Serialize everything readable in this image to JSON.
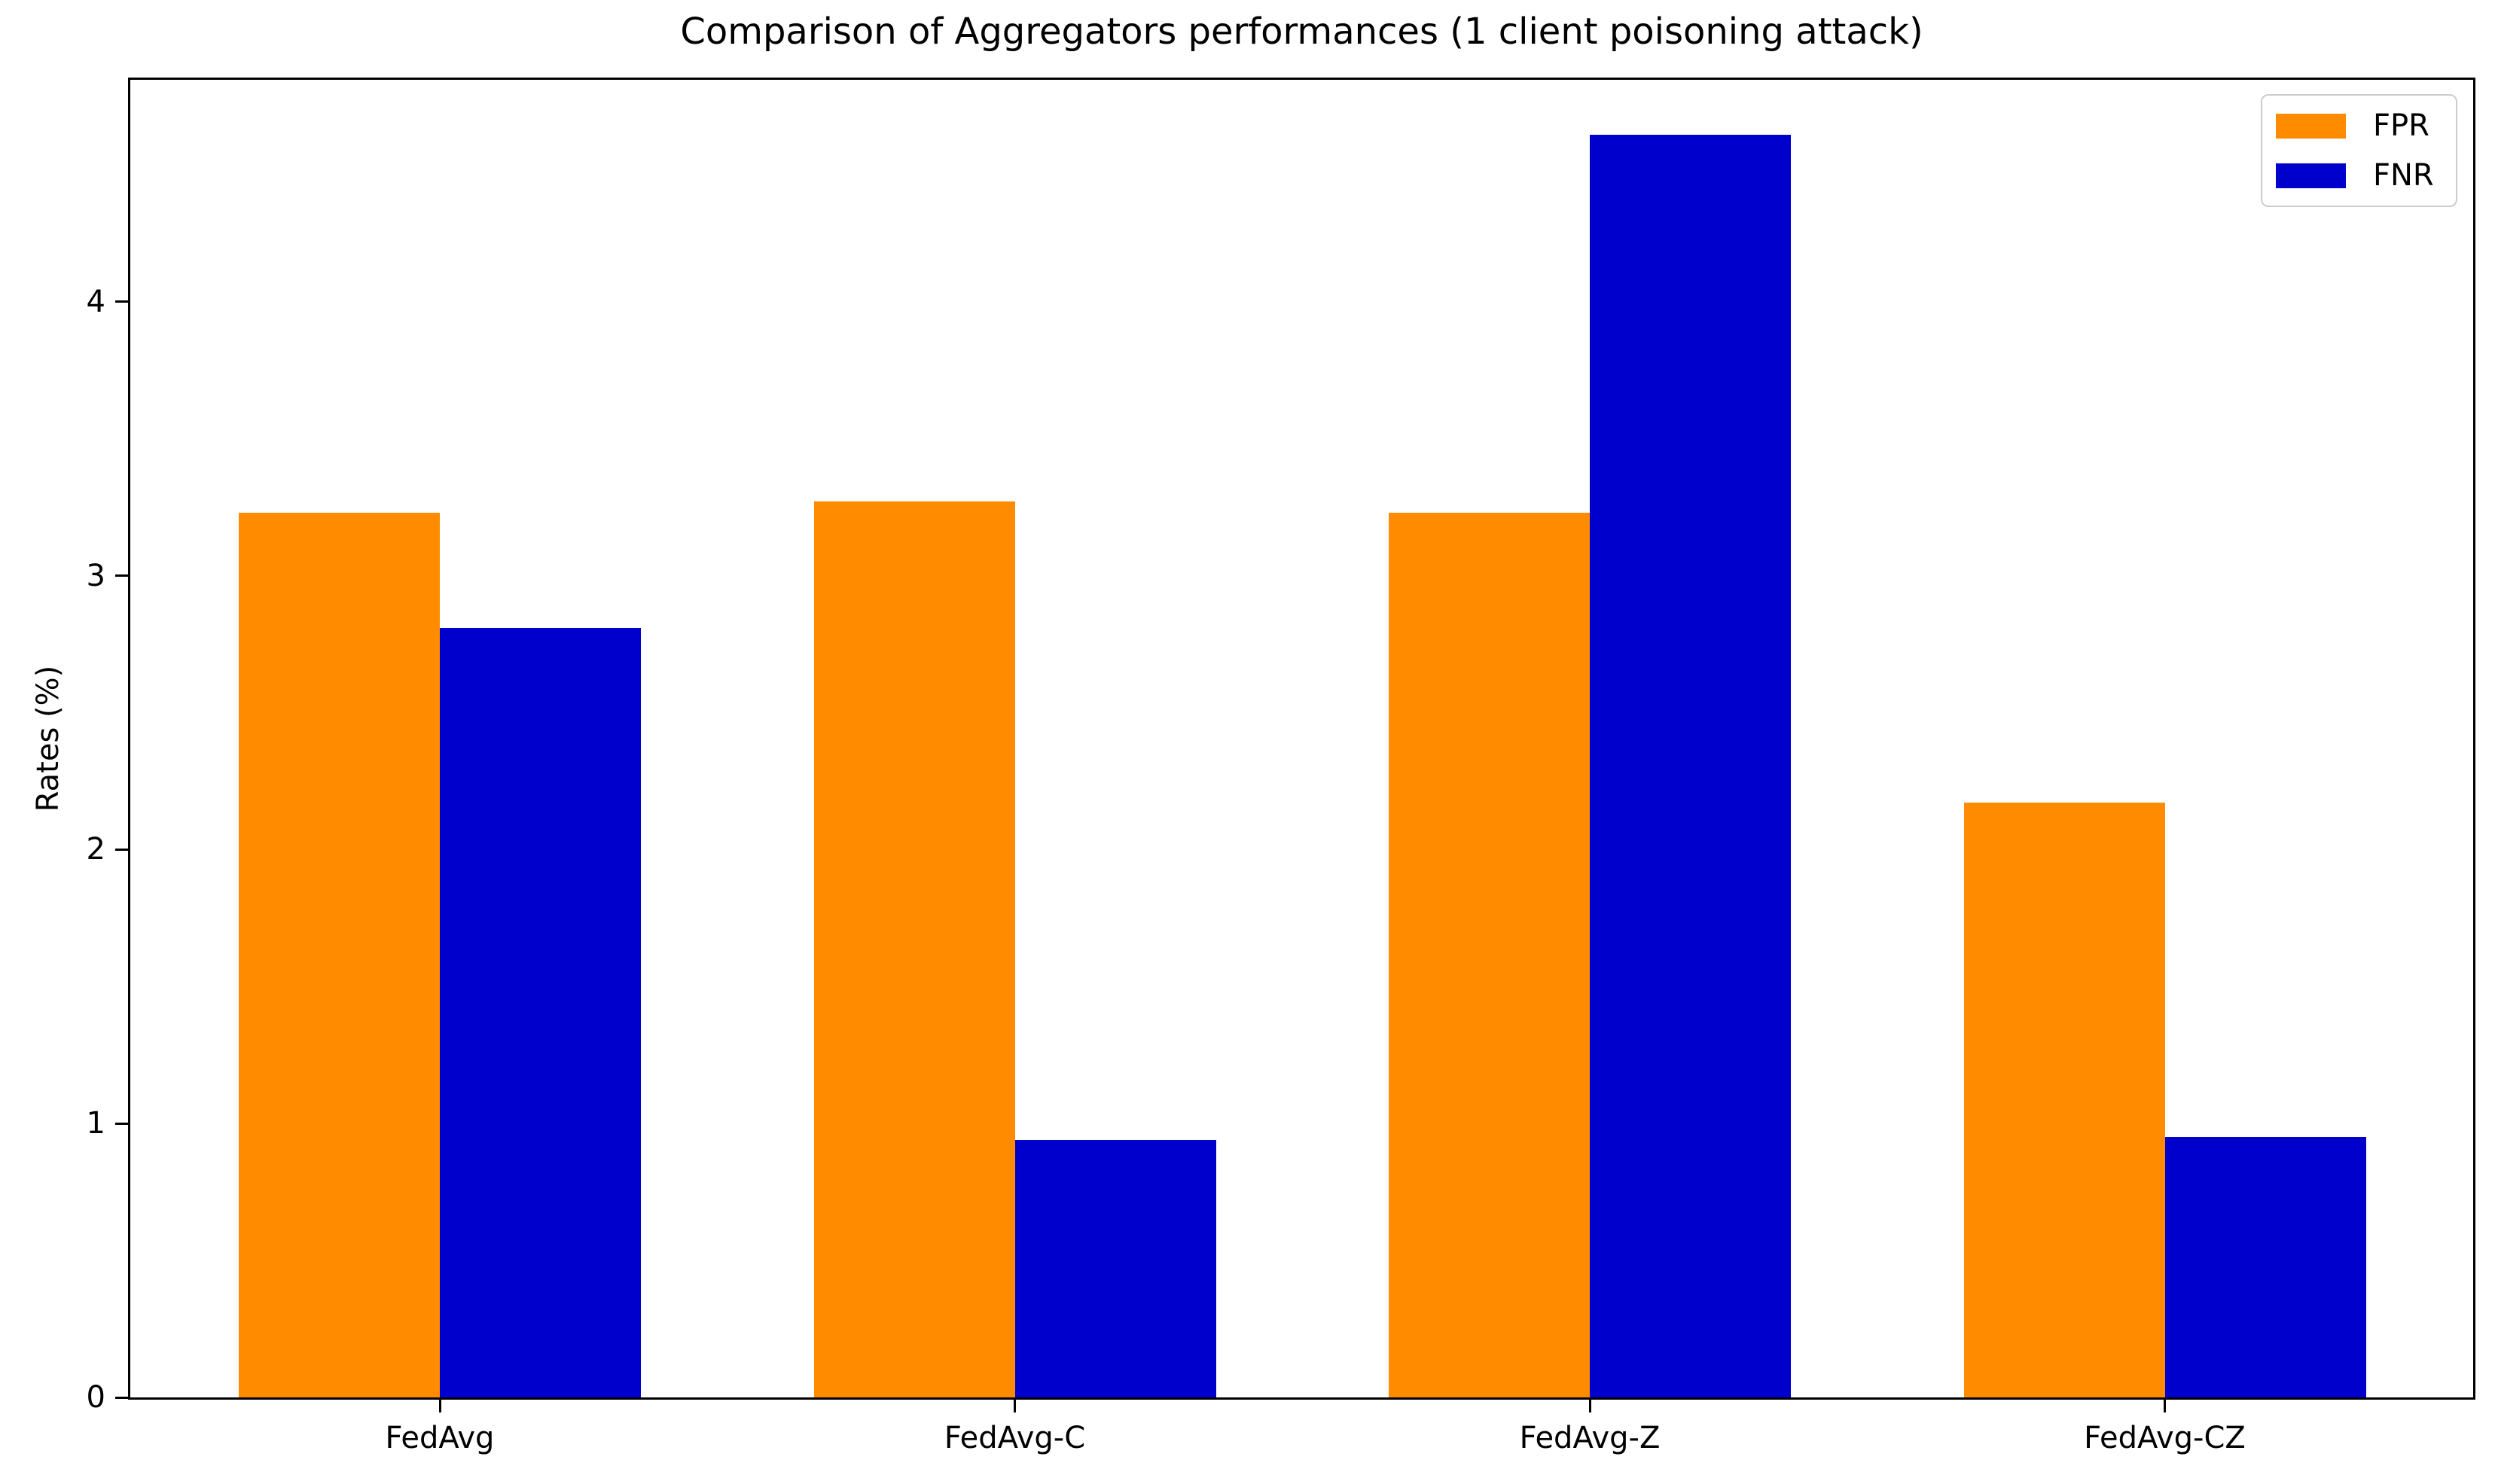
{
  "chart_data": {
    "type": "bar",
    "title": "Comparison of Aggregators performances (1 client poisoning attack)",
    "xlabel": "",
    "ylabel": "Rates (%)",
    "categories": [
      "FedAvg",
      "FedAvg-C",
      "FedAvg-Z",
      "FedAvg-CZ"
    ],
    "series": [
      {
        "name": "FPR",
        "color": "#FF8C00",
        "values": [
          3.23,
          3.27,
          3.23,
          2.17
        ]
      },
      {
        "name": "FNR",
        "color": "#0000CD",
        "values": [
          2.81,
          0.94,
          4.61,
          0.95
        ]
      }
    ],
    "yticks": [
      0,
      1,
      2,
      3,
      4
    ],
    "ylim": [
      0,
      4.81
    ],
    "grid": false,
    "legend_position": "upper right",
    "axis_color": "#000000",
    "background_color": "#ffffff"
  }
}
